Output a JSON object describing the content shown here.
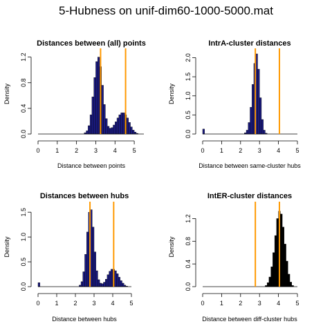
{
  "figure_title": "5-Hubness on unif-dim60-1000-5000.mat",
  "colors": {
    "bar_blue": "#1a1a80",
    "bar_black": "#000000",
    "vline": "#ff9900",
    "axis": "#000000"
  },
  "chart_data": [
    {
      "type": "bar",
      "title": "Distances between (all) points",
      "xlabel": "Distance between points",
      "ylabel": "Density",
      "xlim": [
        0,
        5.5
      ],
      "ylim": [
        0,
        1.25
      ],
      "xticks": [
        "0",
        "1",
        "2",
        "3",
        "4",
        "5"
      ],
      "yticks": [
        "0.0",
        "0.4",
        "0.8",
        "1.2"
      ],
      "bar_color": "#1a1a80",
      "vlines": [
        3.25,
        4.55
      ],
      "bins": {
        "x": [
          2.4,
          2.5,
          2.6,
          2.7,
          2.8,
          2.9,
          3.0,
          3.1,
          3.2,
          3.3,
          3.4,
          3.5,
          3.6,
          3.7,
          3.8,
          3.9,
          4.0,
          4.1,
          4.2,
          4.3,
          4.4,
          4.5,
          4.6,
          4.7,
          4.8,
          4.9,
          5.0,
          5.1
        ],
        "values": [
          0.02,
          0.05,
          0.13,
          0.3,
          0.58,
          0.88,
          1.13,
          1.2,
          1.05,
          0.76,
          0.46,
          0.24,
          0.12,
          0.09,
          0.1,
          0.14,
          0.19,
          0.25,
          0.3,
          0.33,
          0.33,
          0.3,
          0.25,
          0.18,
          0.11,
          0.06,
          0.03,
          0.01
        ]
      }
    },
    {
      "type": "bar",
      "title": "IntrA-cluster distances",
      "xlabel": "Distance between same-cluster hubs",
      "ylabel": "Density",
      "xlim": [
        0,
        5
      ],
      "ylim": [
        0,
        2.1
      ],
      "xticks": [
        "0",
        "1",
        "2",
        "3",
        "4",
        "5"
      ],
      "yticks": [
        "0.0",
        "0.5",
        "1.0",
        "1.5",
        "2.0"
      ],
      "bar_color": "#1a1a80",
      "vlines": [
        2.78,
        4.05
      ],
      "bins": {
        "x": [
          0,
          2.2,
          2.3,
          2.4,
          2.5,
          2.6,
          2.7,
          2.8,
          2.9,
          3.0,
          3.1,
          3.2,
          3.3
        ],
        "values": [
          0.13,
          0.03,
          0.1,
          0.3,
          0.7,
          1.3,
          1.85,
          2.1,
          1.7,
          0.95,
          0.38,
          0.1,
          0.02
        ]
      }
    },
    {
      "type": "bar",
      "title": "Distances between hubs",
      "xlabel": "Distance between hubs",
      "ylabel": "Density",
      "xlim": [
        0,
        5
      ],
      "ylim": [
        0,
        1.6
      ],
      "xticks": [
        "0",
        "1",
        "2",
        "3",
        "4",
        "5"
      ],
      "yticks": [
        "0.0",
        "0.5",
        "1.0",
        "1.5"
      ],
      "bar_color": "#1a1a80",
      "vlines": [
        2.78,
        4.05
      ],
      "bins": {
        "x": [
          0,
          2.2,
          2.3,
          2.4,
          2.5,
          2.6,
          2.7,
          2.8,
          2.9,
          3.0,
          3.1,
          3.2,
          3.3,
          3.4,
          3.5,
          3.6,
          3.7,
          3.8,
          3.9,
          4.0,
          4.1,
          4.2,
          4.3,
          4.4,
          4.5,
          4.6,
          4.7
        ],
        "values": [
          0.08,
          0.03,
          0.1,
          0.3,
          0.65,
          1.1,
          1.5,
          1.55,
          1.2,
          0.7,
          0.32,
          0.14,
          0.07,
          0.06,
          0.09,
          0.15,
          0.24,
          0.31,
          0.35,
          0.35,
          0.32,
          0.26,
          0.19,
          0.12,
          0.07,
          0.03,
          0.01
        ]
      }
    },
    {
      "type": "bar",
      "title": "IntER-cluster distances",
      "xlabel": "Distance between diff-cluster hubs",
      "ylabel": "Density",
      "xlim": [
        0,
        5
      ],
      "ylim": [
        0,
        1.4
      ],
      "xticks": [
        "0",
        "1",
        "2",
        "3",
        "4",
        "5"
      ],
      "yticks": [
        "0.0",
        "0.4",
        "0.8",
        "1.2"
      ],
      "bar_color": "#000000",
      "vlines": [
        2.78,
        4.05
      ],
      "bins": {
        "x": [
          3.3,
          3.4,
          3.5,
          3.6,
          3.7,
          3.8,
          3.9,
          4.0,
          4.1,
          4.2,
          4.3,
          4.4,
          4.5,
          4.6,
          4.7
        ],
        "values": [
          0.02,
          0.07,
          0.17,
          0.35,
          0.6,
          0.9,
          1.2,
          1.33,
          1.28,
          1.05,
          0.75,
          0.45,
          0.22,
          0.08,
          0.02
        ]
      }
    }
  ]
}
